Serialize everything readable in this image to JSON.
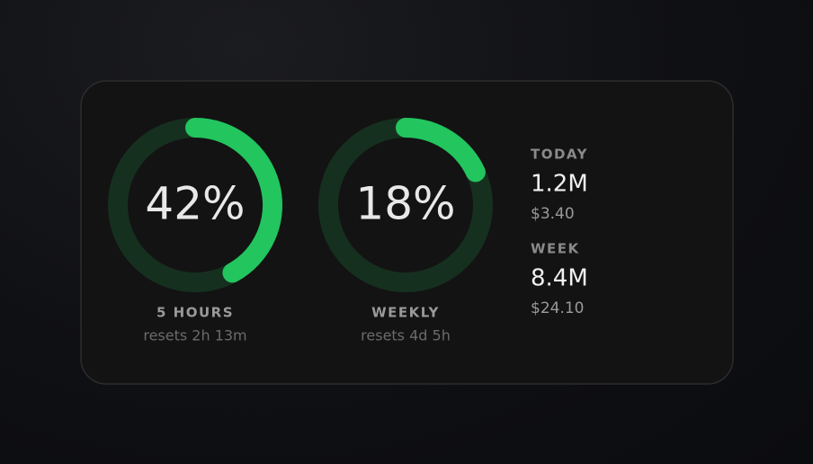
{
  "gauges": [
    {
      "value": 42,
      "value_label": "42%",
      "label": "5 HOURS",
      "sublabel": "resets 2h 13m"
    },
    {
      "value": 18,
      "value_label": "18%",
      "label": "WEEKLY",
      "sublabel": "resets 4d 5h"
    }
  ],
  "stats": [
    {
      "label": "TODAY",
      "tokens": "1.2M",
      "cost": "$3.40"
    },
    {
      "label": "WEEK",
      "tokens": "8.4M",
      "cost": "$24.10"
    }
  ],
  "ring_color": "#22c55e",
  "track_color": "#16301f"
}
